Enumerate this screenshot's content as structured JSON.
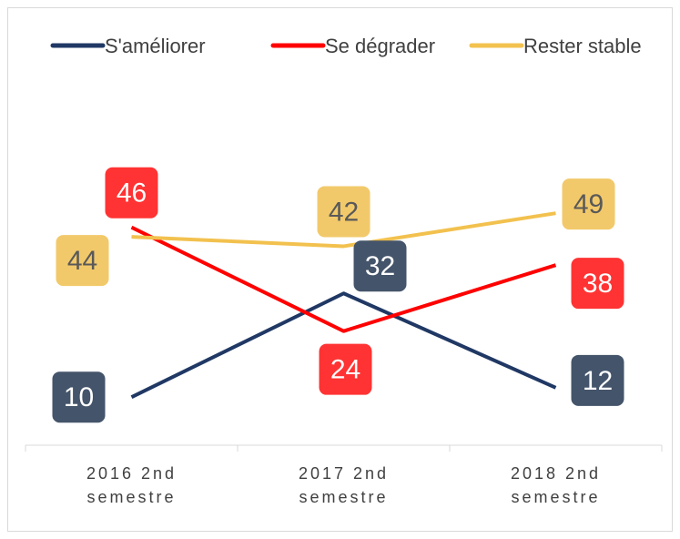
{
  "chart_data": {
    "type": "line",
    "categories": [
      "2016 2nd semestre",
      "2017 2nd semestre",
      "2018 2nd semestre"
    ],
    "series": [
      {
        "name": "S'améliorer",
        "color": "#203864",
        "label_color": "#44546a",
        "label_text_color": "#ffffff",
        "values": [
          10,
          32,
          12
        ]
      },
      {
        "name": "Se dégrader",
        "color": "#ff0000",
        "label_color": "#ff3333",
        "label_text_color": "#ffffff",
        "values": [
          46,
          24,
          38
        ]
      },
      {
        "name": "Rester stable",
        "color": "#f2c14e",
        "label_color": "#f2c96a",
        "label_text_color": "#595959",
        "values": [
          44,
          42,
          49
        ]
      }
    ],
    "ylim": [
      0,
      80
    ],
    "legend": "top"
  }
}
